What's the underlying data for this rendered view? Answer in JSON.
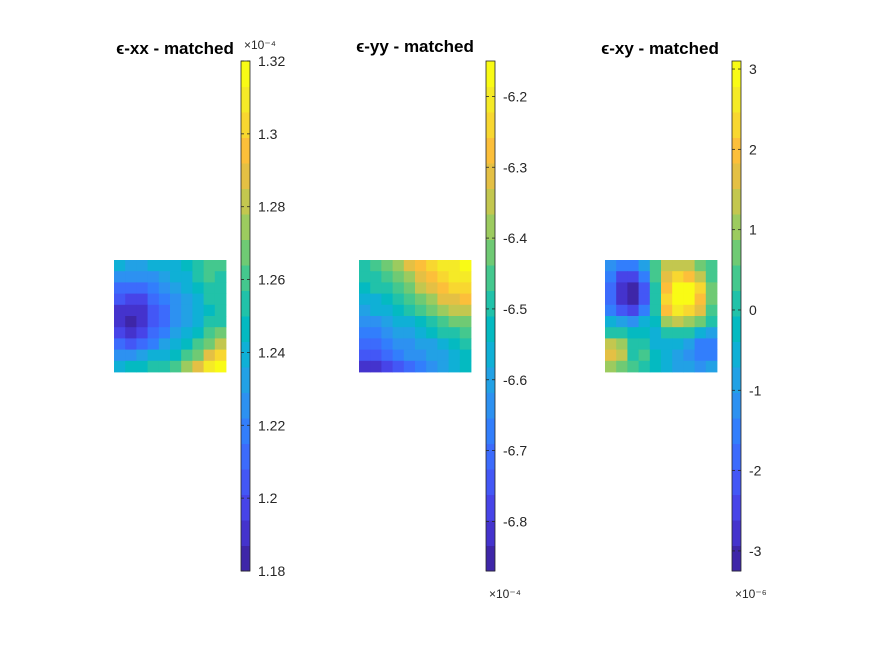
{
  "colormap": [
    "#3e26a8",
    "#4433cd",
    "#4744e8",
    "#4357f6",
    "#3c6bfc",
    "#327efc",
    "#2d91f1",
    "#22a1e5",
    "#0fb0d6",
    "#04bac1",
    "#21c2a9",
    "#44c88e",
    "#6fca74",
    "#9ccb5f",
    "#c3c74f",
    "#e4c044",
    "#fcbf3a",
    "#f8d730",
    "#f5ea27",
    "#f9fb15"
  ],
  "chart_data": [
    {
      "type": "heatmap",
      "title": "ϵ-xx - matched",
      "clim": [
        1.18,
        1.32
      ],
      "colorbar_ticks": [
        "1.18",
        "1.2",
        "1.22",
        "1.24",
        "1.26",
        "1.28",
        "1.3",
        "1.32"
      ],
      "colorbar_exponent": "×10⁻⁴",
      "exponent_position": "top",
      "values": [
        [
          1.238,
          1.235,
          1.234,
          1.236,
          1.239,
          1.242,
          1.246,
          1.255,
          1.263,
          1.258
        ],
        [
          1.226,
          1.224,
          1.224,
          1.227,
          1.232,
          1.237,
          1.242,
          1.25,
          1.258,
          1.254
        ],
        [
          1.214,
          1.211,
          1.212,
          1.218,
          1.225,
          1.231,
          1.238,
          1.246,
          1.254,
          1.252
        ],
        [
          1.202,
          1.199,
          1.2,
          1.209,
          1.218,
          1.226,
          1.234,
          1.242,
          1.25,
          1.25
        ],
        [
          1.193,
          1.188,
          1.19,
          1.202,
          1.213,
          1.222,
          1.231,
          1.24,
          1.248,
          1.25
        ],
        [
          1.19,
          1.186,
          1.189,
          1.201,
          1.212,
          1.222,
          1.232,
          1.241,
          1.25,
          1.254
        ],
        [
          1.195,
          1.192,
          1.196,
          1.208,
          1.219,
          1.229,
          1.238,
          1.247,
          1.258,
          1.264
        ],
        [
          1.208,
          1.206,
          1.21,
          1.22,
          1.23,
          1.239,
          1.248,
          1.258,
          1.27,
          1.28
        ],
        [
          1.224,
          1.224,
          1.229,
          1.236,
          1.242,
          1.249,
          1.258,
          1.271,
          1.29,
          1.3
        ],
        [
          1.242,
          1.243,
          1.246,
          1.25,
          1.254,
          1.261,
          1.272,
          1.29,
          1.31,
          1.32
        ]
      ]
    },
    {
      "type": "heatmap",
      "title": "ϵ-yy - matched",
      "clim": [
        -6.87,
        -6.15
      ],
      "colorbar_ticks": [
        "-6.8",
        "-6.7",
        "-6.6",
        "-6.5",
        "-6.4",
        "-6.3",
        "-6.2"
      ],
      "colorbar_exponent": "×10⁻⁴",
      "exponent_position": "bottom",
      "values": [
        [
          -6.48,
          -6.45,
          -6.42,
          -6.38,
          -6.33,
          -6.29,
          -6.25,
          -6.22,
          -6.19,
          -6.16
        ],
        [
          -6.51,
          -6.48,
          -6.45,
          -6.41,
          -6.37,
          -6.32,
          -6.28,
          -6.25,
          -6.22,
          -6.2
        ],
        [
          -6.54,
          -6.51,
          -6.48,
          -6.45,
          -6.41,
          -6.36,
          -6.32,
          -6.28,
          -6.25,
          -6.24
        ],
        [
          -6.57,
          -6.55,
          -6.52,
          -6.49,
          -6.45,
          -6.41,
          -6.37,
          -6.33,
          -6.3,
          -6.29
        ],
        [
          -6.61,
          -6.58,
          -6.56,
          -6.53,
          -6.5,
          -6.46,
          -6.42,
          -6.38,
          -6.36,
          -6.35
        ],
        [
          -6.64,
          -6.62,
          -6.6,
          -6.57,
          -6.55,
          -6.52,
          -6.48,
          -6.45,
          -6.42,
          -6.41
        ],
        [
          -6.68,
          -6.66,
          -6.63,
          -6.61,
          -6.59,
          -6.57,
          -6.54,
          -6.51,
          -6.48,
          -6.46
        ],
        [
          -6.72,
          -6.7,
          -6.67,
          -6.64,
          -6.62,
          -6.61,
          -6.59,
          -6.56,
          -6.53,
          -6.5
        ],
        [
          -6.76,
          -6.74,
          -6.71,
          -6.68,
          -6.65,
          -6.63,
          -6.61,
          -6.59,
          -6.56,
          -6.52
        ],
        [
          -6.83,
          -6.81,
          -6.78,
          -6.74,
          -6.7,
          -6.67,
          -6.64,
          -6.61,
          -6.58,
          -6.54
        ]
      ]
    },
    {
      "type": "heatmap",
      "title": "ϵ-xy - matched",
      "clim": [
        -3.25,
        3.1
      ],
      "colorbar_ticks": [
        "-3",
        "-2",
        "-1",
        "0",
        "1",
        "2",
        "3"
      ],
      "colorbar_exponent": "×10⁻⁶",
      "exponent_position": "bottom",
      "values": [
        [
          -1.2,
          -1.5,
          -1.4,
          -0.8,
          0.4,
          1.2,
          1.5,
          1.3,
          0.8,
          0.3
        ],
        [
          -1.6,
          -2.3,
          -2.4,
          -1.5,
          0.3,
          1.8,
          2.2,
          2.0,
          1.4,
          0.5
        ],
        [
          -1.8,
          -2.8,
          -3.2,
          -2.0,
          0.2,
          2.0,
          2.8,
          3.0,
          2.2,
          0.7
        ],
        [
          -1.8,
          -2.9,
          -3.1,
          -2.0,
          0.1,
          2.2,
          3.0,
          2.9,
          2.1,
          0.6
        ],
        [
          -1.4,
          -2.2,
          -2.4,
          -1.6,
          0.0,
          1.9,
          2.5,
          2.3,
          1.8,
          0.5
        ],
        [
          -0.5,
          -0.9,
          -1.3,
          -0.6,
          -0.1,
          1.0,
          1.4,
          1.1,
          0.6,
          0.0
        ],
        [
          0.2,
          0.1,
          -0.3,
          -0.2,
          -0.4,
          0.0,
          0.2,
          0.0,
          -0.5,
          -0.8
        ],
        [
          1.5,
          0.9,
          0.0,
          0.2,
          -0.4,
          -0.5,
          -0.5,
          -1.0,
          -1.4,
          -1.5
        ],
        [
          1.6,
          1.3,
          0.1,
          0.3,
          -0.2,
          -0.4,
          -0.9,
          -1.2,
          -1.5,
          -1.6
        ],
        [
          0.9,
          0.6,
          0.3,
          0.0,
          -0.3,
          -0.5,
          -0.8,
          -1.0,
          -1.1,
          -1.0
        ]
      ]
    }
  ]
}
